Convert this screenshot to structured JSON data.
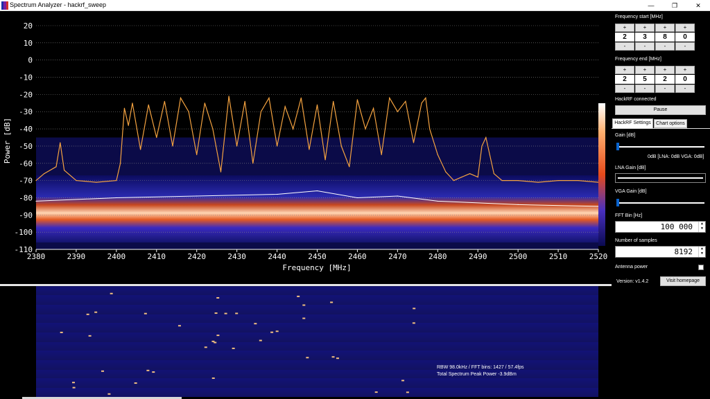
{
  "window": {
    "title": "Spectrum Analyzer - hackrf_sweep",
    "minimize": "—",
    "maximize": "❐",
    "close": "✕",
    "icon_colors": [
      "#1c2ea8",
      "#7a1fa0",
      "#d0302a"
    ]
  },
  "colors": {
    "background": "#000000",
    "peak_trace": "#f5a340",
    "realtime_trace": "#ffffff",
    "gridline": "#8a8a8a",
    "waterfall_bg": "#10106a",
    "accent": "#0a64d0"
  },
  "chart_data": {
    "type": "line",
    "xlabel": "Frequency [MHz]",
    "ylabel": "Power [dB]",
    "xlim": [
      2380,
      2520
    ],
    "ylim": [
      -110,
      20
    ],
    "x_ticks": [
      2380,
      2390,
      2400,
      2410,
      2420,
      2430,
      2440,
      2450,
      2460,
      2470,
      2480,
      2490,
      2500,
      2510,
      2520
    ],
    "y_ticks": [
      20,
      10,
      0,
      -10,
      -20,
      -30,
      -40,
      -50,
      -60,
      -70,
      -80,
      -90,
      -100,
      -110
    ],
    "grid": "horizontal dotted",
    "series": [
      {
        "color": "#f5a340",
        "x": [
          2380,
          2382,
          2385,
          2386,
          2387,
          2390,
          2395,
          2400,
          2401,
          2402,
          2403,
          2404,
          2406,
          2408,
          2410,
          2412,
          2414,
          2416,
          2418,
          2420,
          2422,
          2424,
          2426,
          2428,
          2430,
          2432,
          2434,
          2436,
          2438,
          2440,
          2442,
          2444,
          2446,
          2448,
          2450,
          2452,
          2454,
          2456,
          2458,
          2460,
          2462,
          2464,
          2466,
          2468,
          2470,
          2472,
          2474,
          2476,
          2477,
          2478,
          2480,
          2482,
          2484,
          2486,
          2488,
          2490,
          2491,
          2492,
          2494,
          2496,
          2500,
          2505,
          2510,
          2515,
          2520
        ],
        "y": [
          -70,
          -66,
          -62,
          -48,
          -64,
          -70,
          -71,
          -70,
          -60,
          -28,
          -38,
          -25,
          -52,
          -26,
          -45,
          -24,
          -50,
          -22,
          -30,
          -55,
          -25,
          -40,
          -65,
          -21,
          -50,
          -24,
          -60,
          -30,
          -22,
          -50,
          -27,
          -40,
          -22,
          -52,
          -26,
          -58,
          -24,
          -50,
          -62,
          -23,
          -40,
          -28,
          -55,
          -22,
          -30,
          -24,
          -48,
          -25,
          -22,
          -40,
          -55,
          -65,
          -70,
          -68,
          -66,
          -68,
          -50,
          -45,
          -66,
          -70,
          -70,
          -71,
          -70,
          -70,
          -71
        ]
      },
      {
        "color": "#ffffff",
        "x": [
          2380,
          2400,
          2420,
          2440,
          2450,
          2460,
          2470,
          2480,
          2500,
          2520
        ],
        "y": [
          -82,
          -80,
          -79,
          -78,
          -76,
          -80,
          -79,
          -82,
          -84,
          -85
        ]
      }
    ]
  },
  "waterfall": {
    "info_line1": "RBW 98.0kHz / FFT bins: 1427 / 57.4fps",
    "info_line2": "Total Spectrum Peak Power -3.9dBm"
  },
  "panel": {
    "freq_start_label": "Frequency start [MHz]",
    "freq_start_digits": [
      "2",
      "3",
      "8",
      "0"
    ],
    "freq_end_label": "Frequency end [MHz]",
    "freq_end_digits": [
      "2",
      "5",
      "2",
      "0"
    ],
    "plus": "+",
    "minus": "-",
    "status": "HackRF connected",
    "pause_label": "Pause",
    "tabs": [
      "HackRF Settings",
      "Chart options"
    ],
    "gain_label": "Gain [dB]",
    "gain_readout": "0dB  [LNA: 0dB  VGA: 0dB]",
    "gain_value_db": 0,
    "lna_label": "LNA Gain [dB]",
    "vga_label": "VGA Gain [dB]",
    "vga_value_db": 0,
    "fft_bin_label": "FFT Bin [Hz]",
    "fft_bin_value": "100 000",
    "samples_label": "Number of samples",
    "samples_value": "8192",
    "antenna_label": "Antenna power",
    "antenna_power": false,
    "version": "Version: v1.4.2",
    "homepage_button": "Visit homepage"
  }
}
